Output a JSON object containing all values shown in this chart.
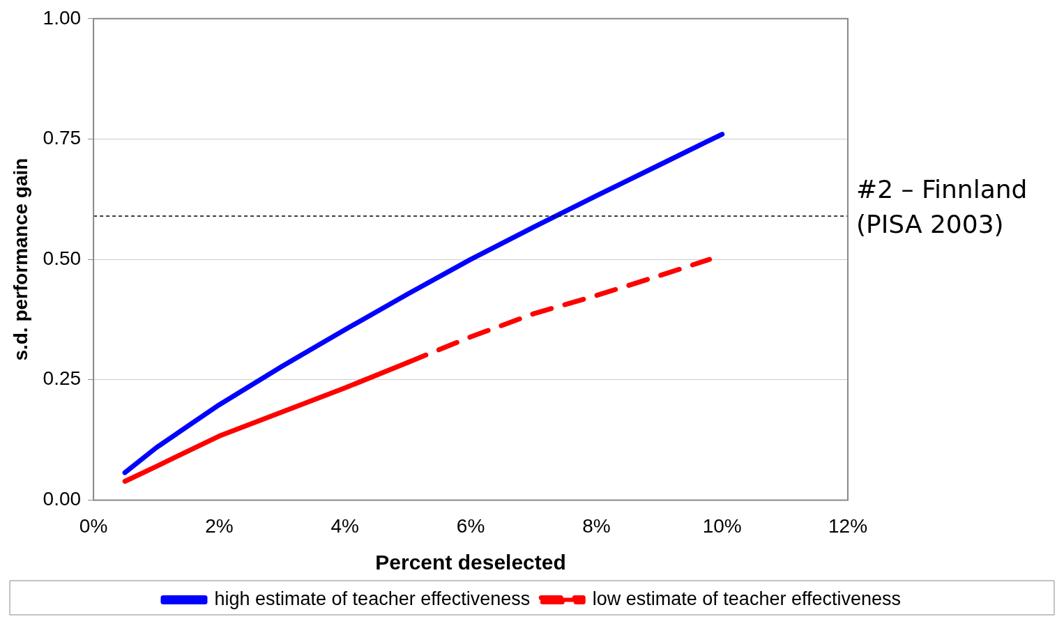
{
  "chart_data": {
    "type": "line",
    "xlabel": "Percent deselected",
    "ylabel": "s.d. performance gain",
    "xlim": [
      0,
      12
    ],
    "xticks": [
      {
        "value": 0,
        "label": "0%"
      },
      {
        "value": 2,
        "label": "2%"
      },
      {
        "value": 4,
        "label": "4%"
      },
      {
        "value": 6,
        "label": "6%"
      },
      {
        "value": 8,
        "label": "8%"
      },
      {
        "value": 10,
        "label": "10%"
      },
      {
        "value": 12,
        "label": "12%"
      }
    ],
    "ylim": [
      0,
      1
    ],
    "yticks": [
      {
        "value": 0,
        "label": "0.00"
      },
      {
        "value": 0.25,
        "label": "0.25"
      },
      {
        "value": 0.5,
        "label": "0.50"
      },
      {
        "value": 0.75,
        "label": "0.75"
      },
      {
        "value": 1,
        "label": "1.00"
      }
    ],
    "grid": "y",
    "legend": "bottom",
    "marker": "none",
    "series": [
      {
        "name": "high estimate of teacher effectiveness",
        "color": "#0000ff",
        "line_style": "solid",
        "x": [
          0.5,
          1,
          2,
          3,
          4,
          5,
          6,
          7,
          8,
          9,
          10
        ],
        "values": [
          0.057,
          0.109,
          0.198,
          0.278,
          0.354,
          0.428,
          0.5,
          0.567,
          0.632,
          0.696,
          0.76
        ]
      },
      {
        "color": "#ff0000",
        "line_style": "solid",
        "x": [
          0.5,
          1,
          2,
          3,
          4,
          5
        ],
        "values": [
          0.039,
          0.07,
          0.133,
          0.183,
          0.233,
          0.286
        ]
      },
      {
        "name": "low estimate of teacher effectiveness",
        "color": "#ff0000",
        "line_style": "dashed",
        "x": [
          5,
          6,
          7,
          8,
          9,
          9.8
        ],
        "values": [
          0.286,
          0.339,
          0.387,
          0.425,
          0.466,
          0.5
        ]
      }
    ],
    "ref_lines": [
      {
        "axis": "y",
        "value": 0.59,
        "label": "#2 – Finnland (PISA 2003)",
        "color": "#000000",
        "line_style": "dashed"
      }
    ]
  }
}
